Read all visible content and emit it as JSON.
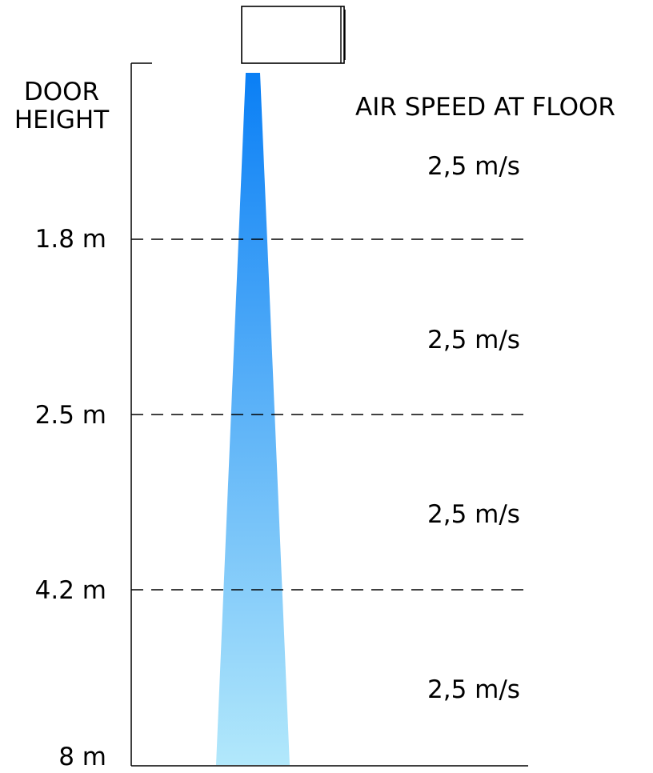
{
  "diagram": {
    "door_height_label": [
      "DOOR",
      "HEIGHT"
    ],
    "air_speed_title": "AIR SPEED AT FLOOR",
    "height_marks": [
      {
        "label": "1.8 m",
        "speed": "2,5 m/s"
      },
      {
        "label": "2.5 m",
        "speed": "2,5 m/s"
      },
      {
        "label": "4.2 m",
        "speed": "2,5 m/s"
      },
      {
        "label": "8 m",
        "speed": "2,5 m/s"
      }
    ],
    "colors": {
      "airflow_top": "#0a7ff5",
      "airflow_bottom": "#b2e8fb",
      "lines": "#000000"
    },
    "icons": {
      "air_curtain_unit": "air-curtain-unit-icon"
    }
  }
}
